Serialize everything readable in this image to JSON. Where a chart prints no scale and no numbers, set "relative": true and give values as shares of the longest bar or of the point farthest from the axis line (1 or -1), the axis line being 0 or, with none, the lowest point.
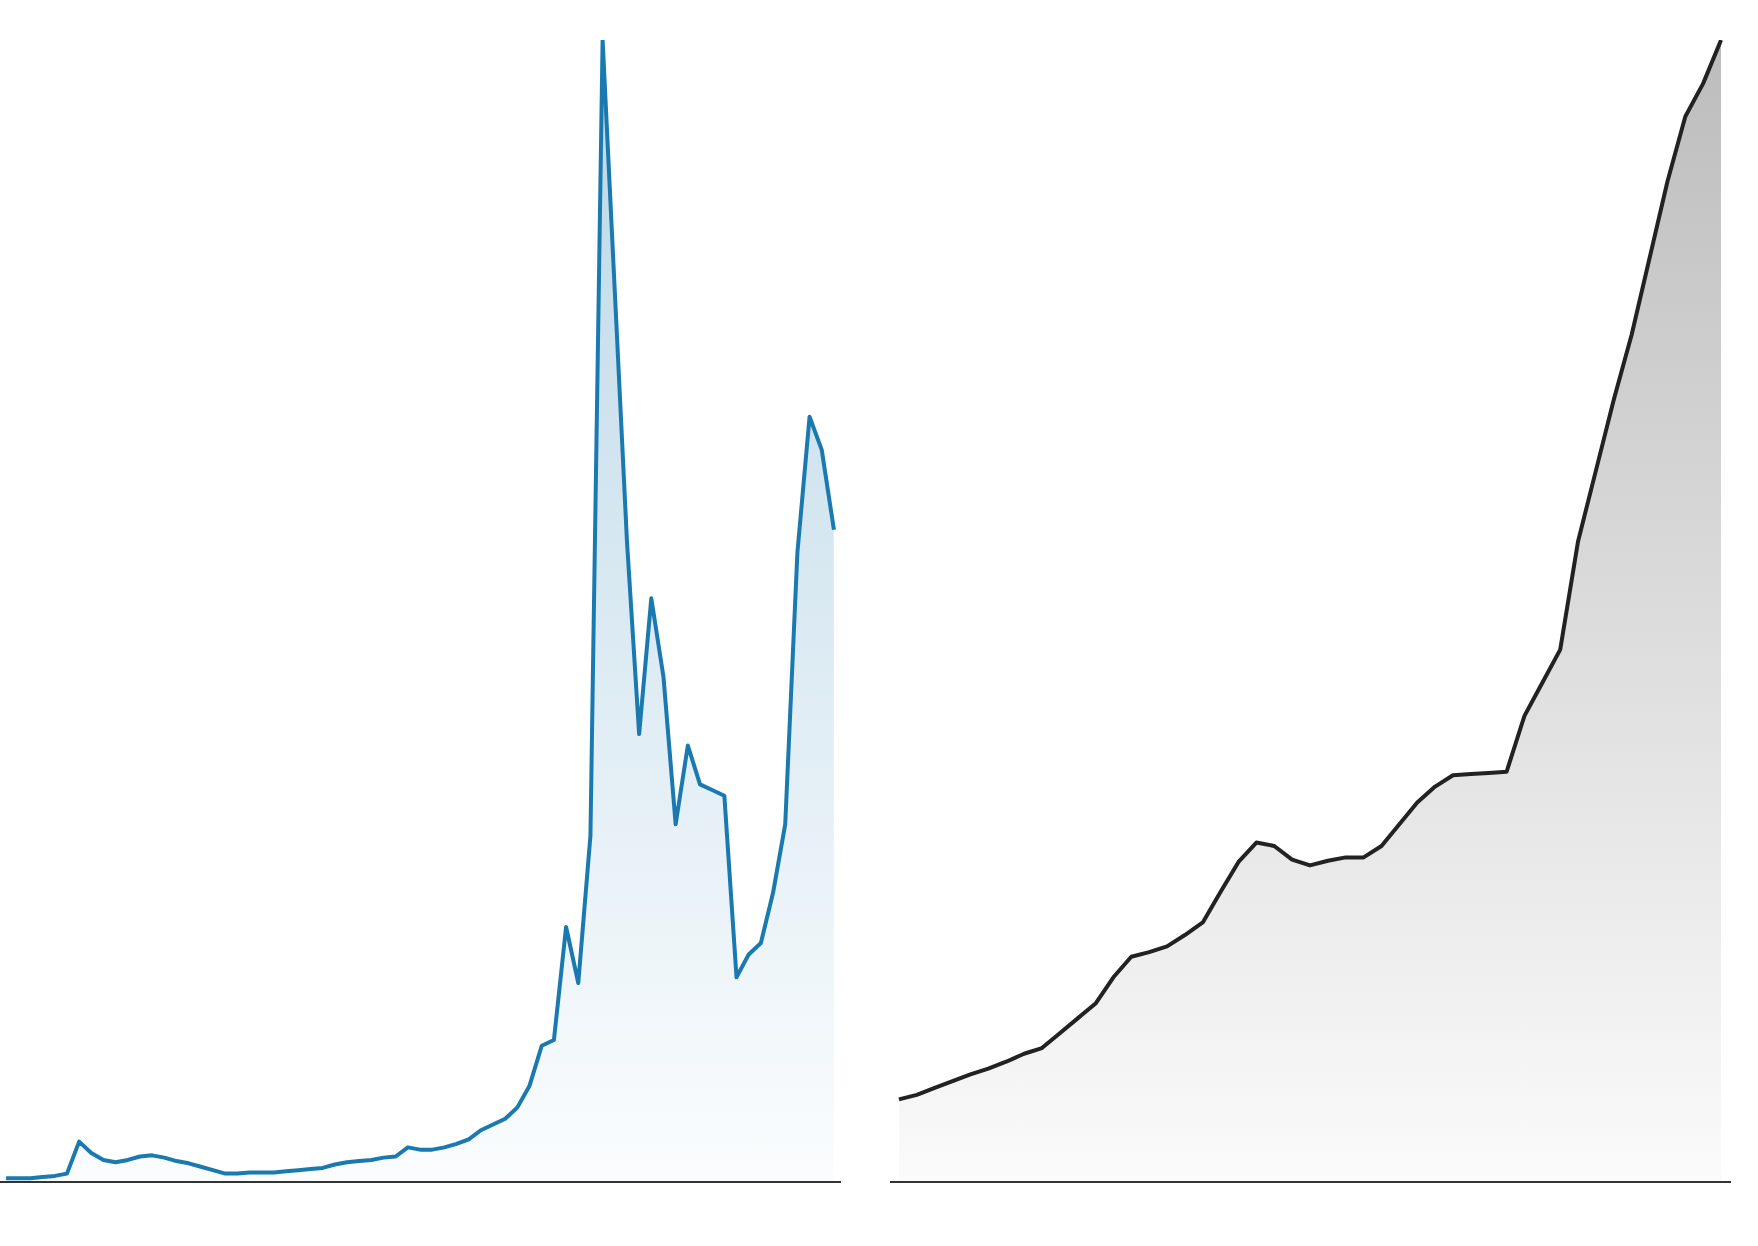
{
  "chart_data": [
    {
      "type": "area",
      "relative": true,
      "categories": [
        null,
        null,
        null,
        null,
        null,
        null,
        null,
        null,
        null,
        null,
        null,
        null,
        null,
        null,
        null,
        null,
        null,
        null,
        null,
        null,
        null,
        null,
        null,
        null,
        null,
        null,
        null,
        null,
        null,
        null,
        null,
        null,
        null,
        null,
        null,
        null,
        null,
        null,
        null,
        null,
        null,
        null,
        null,
        null,
        null,
        null,
        null,
        null,
        null,
        null,
        null,
        null,
        null,
        null,
        null,
        null,
        null,
        null,
        null,
        null,
        null,
        null,
        null,
        null,
        null,
        null,
        null,
        null,
        null
      ],
      "series": [
        {
          "color": "#1a7ab0",
          "values": [
            0.003,
            0.003,
            0.003,
            0.004,
            0.005,
            0.007,
            0.035,
            0.025,
            0.019,
            0.017,
            0.019,
            0.022,
            0.023,
            0.021,
            0.018,
            0.016,
            0.013,
            0.01,
            0.007,
            0.007,
            0.008,
            0.008,
            0.008,
            0.009,
            0.01,
            0.011,
            0.012,
            0.015,
            0.017,
            0.018,
            0.019,
            0.021,
            0.022,
            0.03,
            0.028,
            0.028,
            0.03,
            0.033,
            0.037,
            0.045,
            0.05,
            0.055,
            0.065,
            0.084,
            0.119,
            0.124,
            0.223,
            0.174,
            0.303,
            1,
            0.78,
            0.561,
            0.392,
            0.511,
            0.442,
            0.313,
            0.382,
            0.348,
            0.343,
            0.338,
            0.179,
            0.199,
            0.209,
            0.253,
            0.313,
            0.551,
            0.67,
            0.641,
            0.571
          ]
        }
      ]
    },
    {
      "type": "area",
      "relative": true,
      "categories": [
        null,
        null,
        null,
        null,
        null,
        null,
        null,
        null,
        null,
        null,
        null,
        null,
        null,
        null,
        null,
        null,
        null,
        null,
        null,
        null,
        null,
        null,
        null,
        null,
        null,
        null,
        null,
        null,
        null,
        null,
        null,
        null,
        null,
        null,
        null,
        null,
        null,
        null,
        null,
        null,
        null,
        null,
        null,
        null,
        null,
        null,
        null
      ],
      "series": [
        {
          "color": "#222222",
          "values": [
            0.072,
            0.076,
            0.082,
            0.088,
            0.094,
            0.099,
            0.105,
            0.112,
            0.117,
            0.13,
            0.143,
            0.156,
            0.179,
            0.197,
            0.201,
            0.206,
            0.216,
            0.227,
            0.254,
            0.28,
            0.297,
            0.294,
            0.282,
            0.277,
            0.281,
            0.284,
            0.284,
            0.294,
            0.313,
            0.332,
            0.346,
            0.356,
            0.357,
            0.358,
            0.359,
            0.408,
            0.437,
            0.466,
            0.561,
            0.623,
            0.685,
            0.742,
            0.809,
            0.876,
            0.933,
            0.962,
            1
          ]
        }
      ]
    }
  ]
}
